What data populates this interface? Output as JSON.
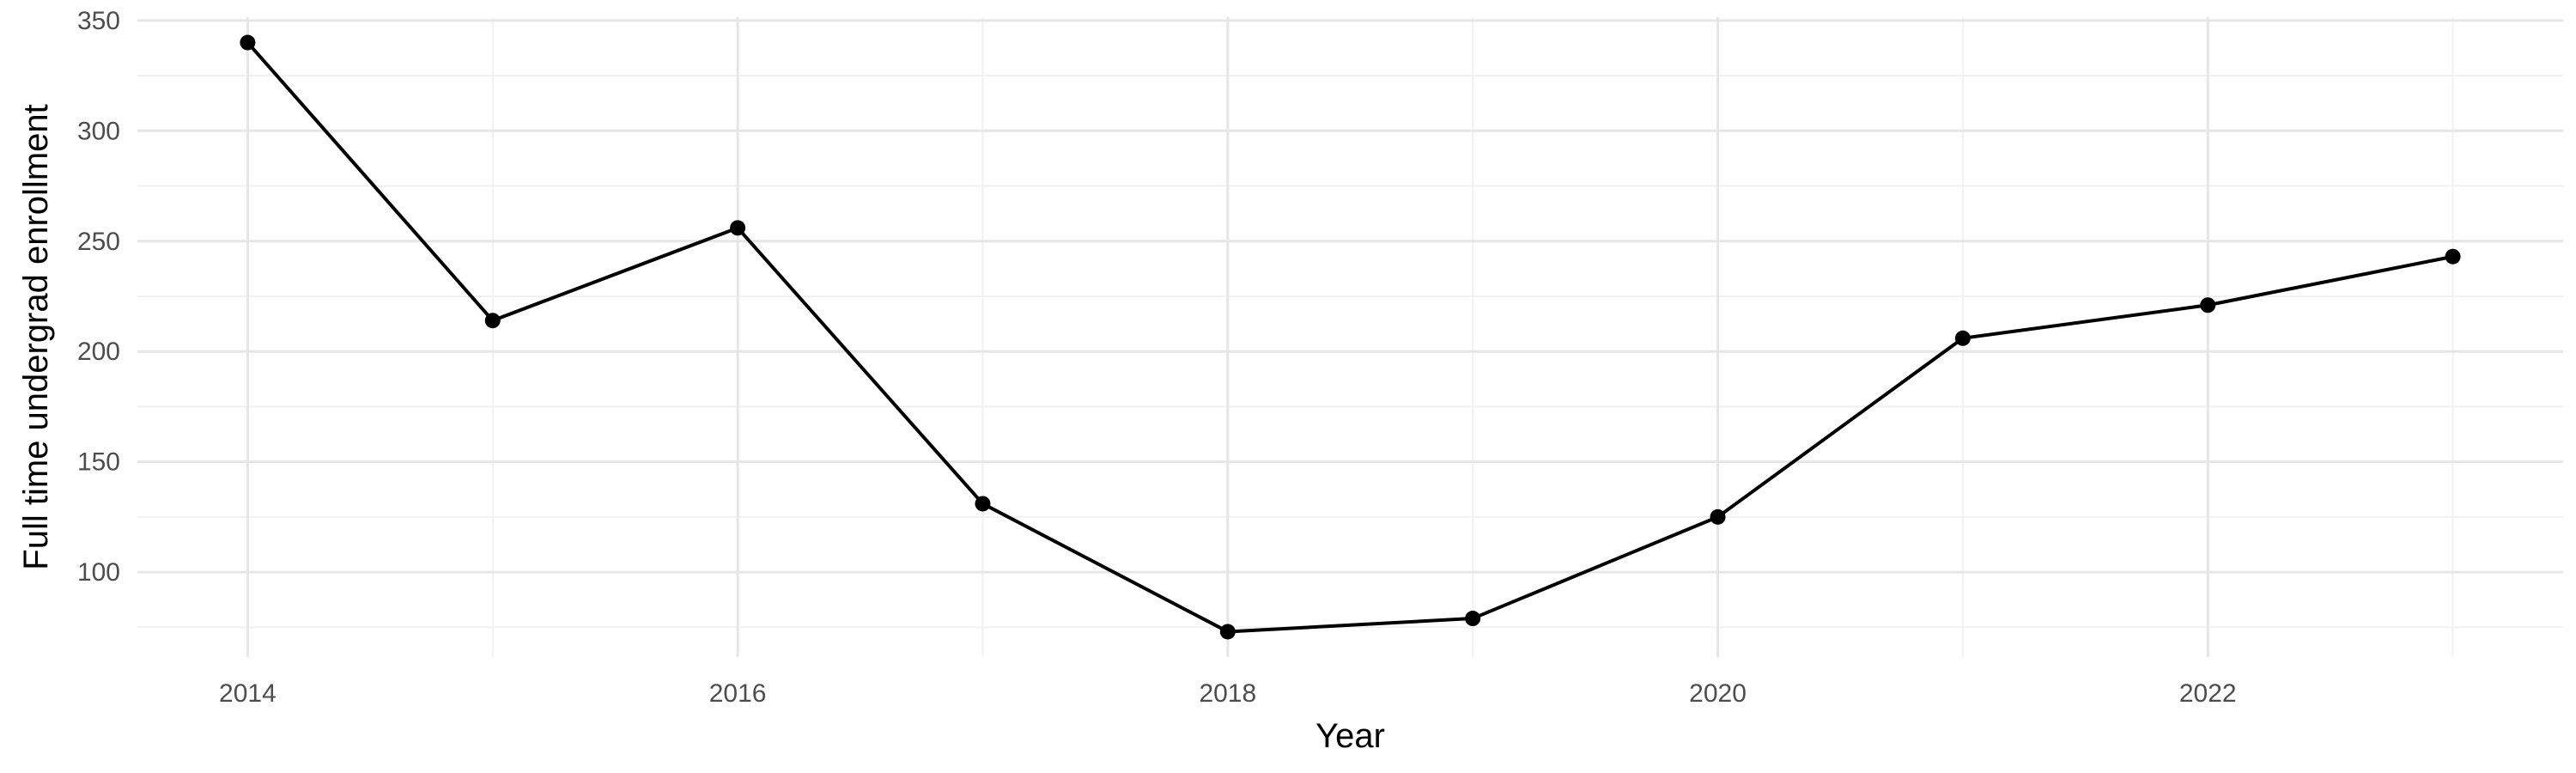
{
  "chart_data": {
    "type": "line",
    "title": "",
    "xlabel": "Year",
    "ylabel": "Full time undergrad enrollment",
    "x": [
      2014,
      2015,
      2016,
      2017,
      2018,
      2019,
      2020,
      2021,
      2022,
      2023
    ],
    "series": [
      {
        "values": [
          340,
          214,
          256,
          131,
          73,
          79,
          125,
          206,
          221,
          243
        ],
        "color": "#000000"
      }
    ],
    "xlim": [
      2013.55,
      2023.45
    ],
    "ylim": [
      61.5,
      351.5
    ],
    "x_ticks": [
      2014,
      2016,
      2018,
      2020,
      2022
    ],
    "y_ticks": [
      100,
      150,
      200,
      250,
      300,
      350
    ],
    "x_minor_ticks": [
      2015,
      2017,
      2019,
      2021,
      2023
    ],
    "y_minor_ticks": [
      75,
      125,
      175,
      225,
      275,
      325
    ],
    "grid": true,
    "legend": "none",
    "colors": {
      "grid_major": "#e6e6e6",
      "grid_minor": "#f1f1f1",
      "tick_text": "#4d4d4d",
      "line": "#000000"
    }
  }
}
